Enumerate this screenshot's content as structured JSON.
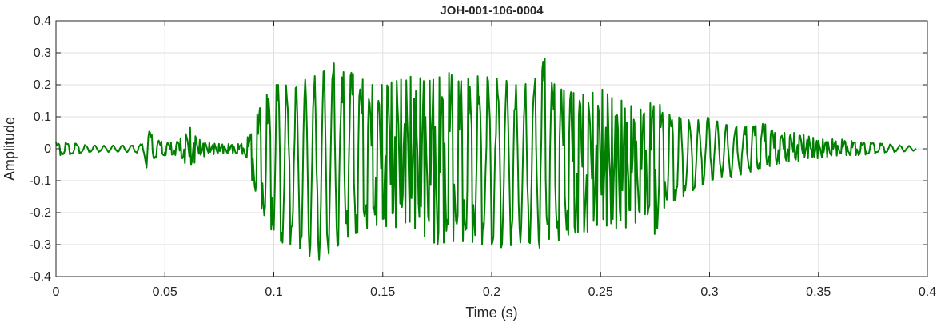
{
  "chart_data": {
    "type": "line",
    "title": "JOH-001-106-0004",
    "xlabel": "Time (s)",
    "ylabel": "Amplitude",
    "xlim": [
      0,
      0.4
    ],
    "ylim": [
      -0.4,
      0.4
    ],
    "x_ticks": [
      0,
      0.05,
      0.1,
      0.15,
      0.2,
      0.25,
      0.3,
      0.35,
      0.4
    ],
    "y_ticks": [
      -0.4,
      -0.3,
      -0.2,
      -0.1,
      0,
      0.1,
      0.2,
      0.3,
      0.4
    ],
    "x_tick_labels": [
      "0",
      "0.05",
      "0.1",
      "0.15",
      "0.2",
      "0.25",
      "0.3",
      "0.35",
      "0.4"
    ],
    "y_tick_labels": [
      "-0.4",
      "-0.3",
      "-0.2",
      "-0.1",
      "0",
      "0.1",
      "0.2",
      "0.3",
      "0.4"
    ],
    "grid": true,
    "line_color": "#008000",
    "series": [
      {
        "x": [
          0,
          0.005,
          0.01,
          0.015,
          0.02,
          0.025,
          0.03,
          0.035,
          0.04,
          0.042,
          0.045,
          0.05,
          0.055,
          0.06,
          0.062,
          0.065,
          0.07,
          0.075,
          0.08,
          0.085,
          0.087,
          0.09,
          0.095,
          0.1,
          0.105,
          0.11,
          0.115,
          0.12,
          0.125,
          0.128,
          0.13,
          0.135,
          0.14,
          0.145,
          0.15,
          0.155,
          0.16,
          0.165,
          0.17,
          0.175,
          0.18,
          0.185,
          0.19,
          0.195,
          0.2,
          0.205,
          0.21,
          0.215,
          0.22,
          0.224,
          0.225,
          0.23,
          0.235,
          0.24,
          0.245,
          0.25,
          0.255,
          0.26,
          0.265,
          0.27,
          0.275,
          0.28,
          0.285,
          0.29,
          0.295,
          0.3,
          0.305,
          0.31,
          0.315,
          0.32,
          0.325,
          0.33,
          0.335,
          0.34,
          0.345,
          0.35,
          0.355,
          0.36,
          0.365,
          0.37,
          0.375,
          0.38,
          0.385,
          0.39,
          0.395
        ],
        "y_max": [
          0.02,
          0.02,
          0.015,
          0.01,
          0.01,
          0.01,
          0.01,
          0.01,
          0.015,
          0.07,
          0.03,
          0.02,
          0.02,
          0.05,
          0.07,
          0.03,
          0.02,
          0.015,
          0.015,
          0.015,
          0.02,
          0.07,
          0.15,
          0.2,
          0.2,
          0.19,
          0.22,
          0.23,
          0.25,
          0.27,
          0.24,
          0.24,
          0.22,
          0.2,
          0.2,
          0.21,
          0.22,
          0.23,
          0.21,
          0.22,
          0.24,
          0.21,
          0.22,
          0.23,
          0.22,
          0.22,
          0.2,
          0.2,
          0.22,
          0.31,
          0.24,
          0.19,
          0.18,
          0.17,
          0.17,
          0.19,
          0.16,
          0.15,
          0.13,
          0.12,
          0.16,
          0.11,
          0.1,
          0.09,
          0.09,
          0.1,
          0.08,
          0.07,
          0.07,
          0.07,
          0.08,
          0.05,
          0.05,
          0.05,
          0.04,
          0.03,
          0.03,
          0.03,
          0.025,
          0.02,
          0.02,
          0.015,
          0.012,
          0.01,
          0.008
        ],
        "y_min": [
          -0.02,
          -0.02,
          -0.015,
          -0.01,
          -0.01,
          -0.01,
          -0.01,
          -0.01,
          -0.015,
          -0.07,
          -0.03,
          -0.02,
          -0.02,
          -0.05,
          -0.06,
          -0.03,
          -0.02,
          -0.015,
          -0.015,
          -0.015,
          -0.02,
          -0.1,
          -0.2,
          -0.27,
          -0.3,
          -0.3,
          -0.33,
          -0.35,
          -0.33,
          -0.31,
          -0.3,
          -0.27,
          -0.26,
          -0.24,
          -0.24,
          -0.25,
          -0.23,
          -0.25,
          -0.28,
          -0.3,
          -0.29,
          -0.29,
          -0.29,
          -0.3,
          -0.3,
          -0.31,
          -0.3,
          -0.29,
          -0.3,
          -0.32,
          -0.28,
          -0.29,
          -0.27,
          -0.26,
          -0.26,
          -0.23,
          -0.25,
          -0.25,
          -0.24,
          -0.2,
          -0.27,
          -0.17,
          -0.16,
          -0.14,
          -0.12,
          -0.1,
          -0.09,
          -0.09,
          -0.08,
          -0.07,
          -0.06,
          -0.05,
          -0.04,
          -0.04,
          -0.03,
          -0.03,
          -0.025,
          -0.02,
          -0.02,
          -0.02,
          -0.015,
          -0.012,
          -0.01,
          -0.008,
          -0.006
        ]
      }
    ]
  }
}
